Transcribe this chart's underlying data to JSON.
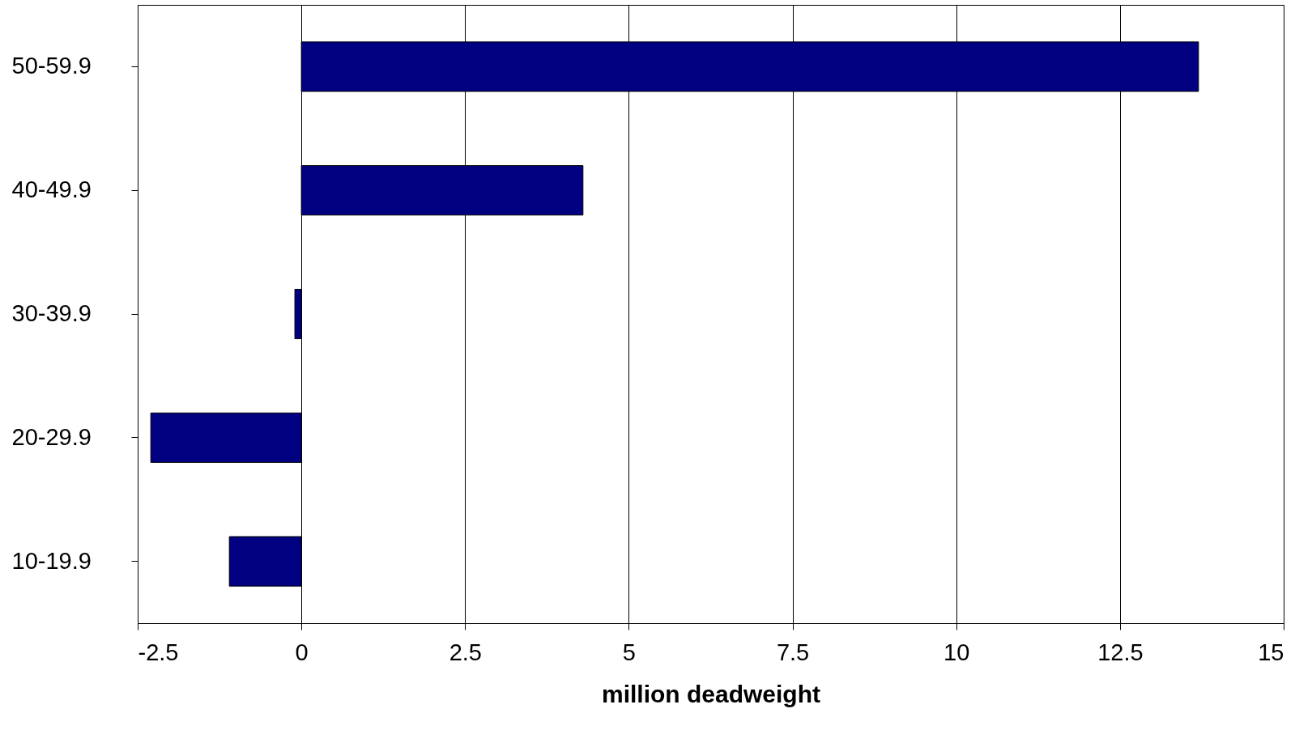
{
  "chart_data": {
    "type": "bar",
    "orientation": "horizontal",
    "xlabel": "million deadweight",
    "categories": [
      "50-59.9",
      "40-49.9",
      "30-39.9",
      "20-29.9",
      "10-19.9"
    ],
    "values": [
      13.7,
      4.3,
      -0.1,
      -2.3,
      -1.1
    ],
    "color": "#000080",
    "xlim": [
      -2.5,
      15
    ],
    "xticks": [
      -2.5,
      0,
      2.5,
      5,
      7.5,
      10,
      12.5,
      15
    ],
    "grid": "x"
  }
}
